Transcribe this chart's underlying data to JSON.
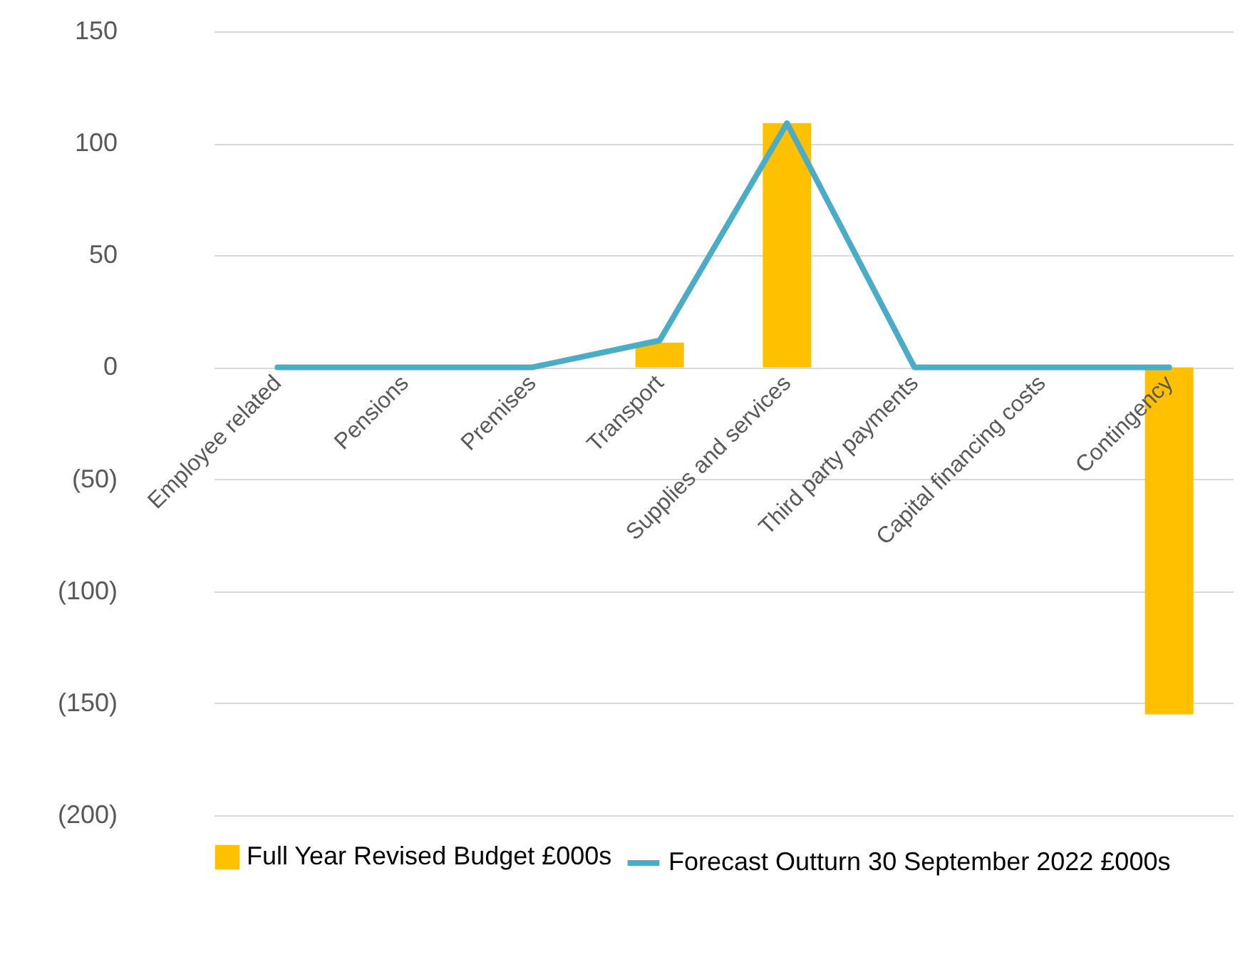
{
  "chart_data": {
    "type": "bar",
    "categories": [
      "Employee related",
      "Pensions",
      "Premises",
      "Transport",
      "Supplies and services",
      "Third party payments",
      "Capital financing costs",
      "Contingency"
    ],
    "series": [
      {
        "name": "Full Year Revised Budget £000s",
        "color": "#ffc000",
        "values": [
          0,
          0,
          0,
          11,
          109,
          0,
          0,
          -155
        ]
      },
      {
        "name": "Forecast Outturn 30 September 2022 £000s",
        "type": "line",
        "color": "#4bacc6",
        "values": [
          0,
          0,
          0,
          12,
          109,
          0,
          0,
          0
        ]
      }
    ],
    "ylim": [
      -200,
      150
    ],
    "yticks": [
      {
        "value": -200,
        "label": "(200)"
      },
      {
        "value": -150,
        "label": "(150)"
      },
      {
        "value": -100,
        "label": "(100)"
      },
      {
        "value": -50,
        "label": "(50)"
      },
      0,
      50,
      100,
      150
    ],
    "grid": "y",
    "legend": "bottom"
  }
}
